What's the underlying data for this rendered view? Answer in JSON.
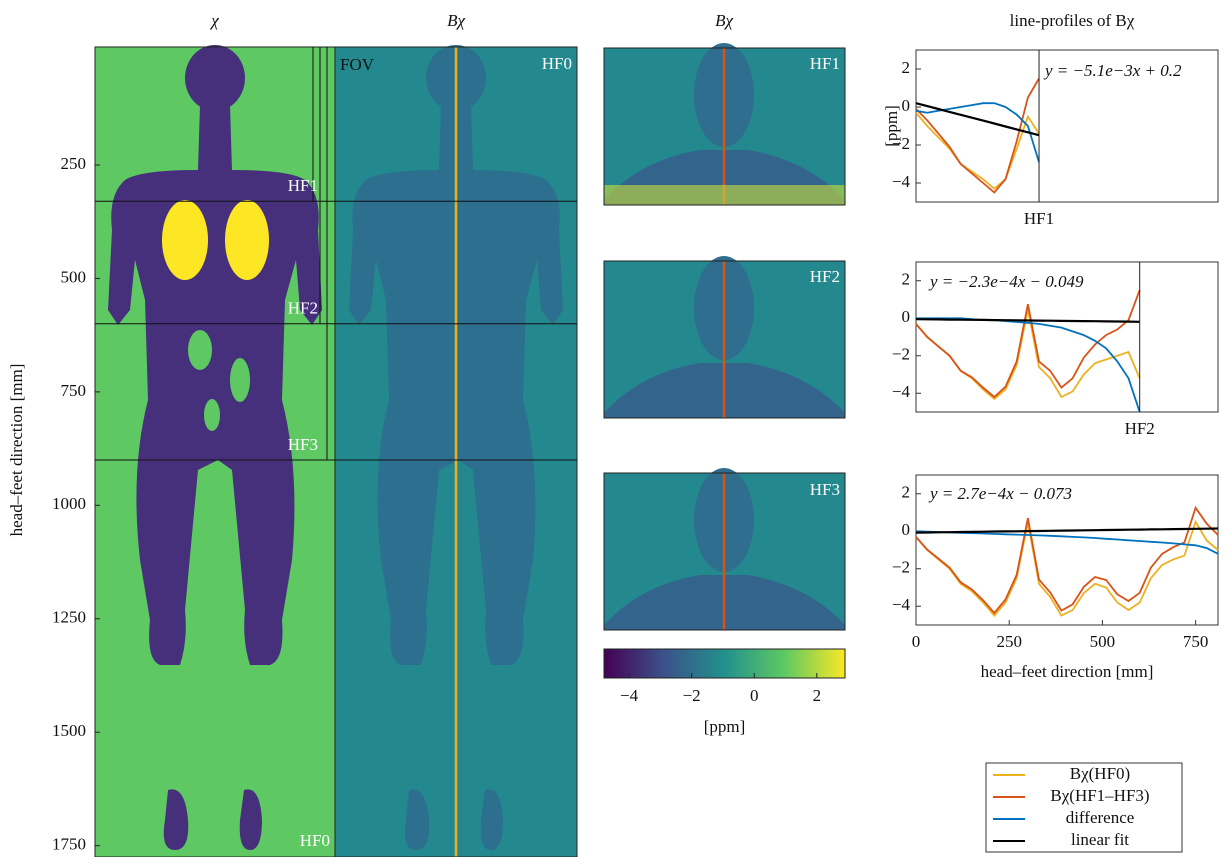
{
  "chart_data": [
    {
      "type": "image",
      "title": "χ",
      "ylabel": "head–feet direction [mm]",
      "ylim": [
        -10,
        1775
      ],
      "yticks": [
        250,
        500,
        750,
        1000,
        1250,
        1500,
        1750
      ],
      "hf_lines": [
        330,
        600,
        900
      ],
      "hf_labels": [
        "HF1",
        "HF2",
        "HF3"
      ],
      "label": "HF0",
      "fov_label": "FOV"
    },
    {
      "type": "image",
      "title": "Bχ",
      "label": "HF0"
    },
    {
      "type": "image",
      "title": "Bχ",
      "panel_labels": [
        "HF1",
        "HF2",
        "HF3"
      ]
    },
    {
      "type": "colorbar",
      "xlim": [
        -4.8,
        2.9
      ],
      "xticks": [
        {
          "value": -4,
          "label": "−4"
        },
        {
          "value": -2,
          "label": "−2"
        },
        0,
        2
      ],
      "xlabel": "[ppm]"
    },
    {
      "type": "line",
      "title": "line-profiles of Bχ",
      "ylabel": "[ppm]",
      "annotation": "y = −5.1e−3x + 0.2",
      "xlim": [
        0,
        810
      ],
      "ylim": [
        -5,
        3
      ],
      "yticks": [
        2,
        0,
        {
          "value": -2,
          "label": "−2"
        },
        {
          "value": -4,
          "label": "−4"
        }
      ],
      "vline": 330,
      "vline_label": "HF1",
      "x": [
        0,
        30,
        60,
        90,
        120,
        150,
        180,
        210,
        240,
        270,
        300,
        330,
        360,
        390,
        420,
        450,
        480,
        510,
        540,
        570,
        600,
        630,
        660,
        690,
        720,
        750,
        780,
        810
      ],
      "series": [
        {
          "color": "#edb120",
          "values": [
            -0.3,
            -1.0,
            -1.6,
            -2.2,
            -3.0,
            -3.4,
            -3.8,
            -4.3,
            -3.8,
            -2.2,
            -0.5,
            -1.4,
            null,
            null,
            null,
            null,
            null,
            null,
            null,
            null,
            null,
            null,
            null,
            null,
            null,
            null,
            null,
            null
          ]
        },
        {
          "color": "#d95319",
          "values": [
            -0.1,
            -0.7,
            -1.4,
            -2.1,
            -3.0,
            -3.5,
            -4.0,
            -4.5,
            -3.8,
            -1.8,
            0.5,
            1.5,
            null,
            null,
            null,
            null,
            null,
            null,
            null,
            null,
            null,
            null,
            null,
            null,
            null,
            null,
            null,
            null
          ]
        },
        {
          "color": "#0072bd",
          "values": [
            -0.2,
            -0.3,
            -0.2,
            -0.1,
            0.0,
            0.1,
            0.2,
            0.2,
            0.0,
            -0.4,
            -1.0,
            -2.9,
            null,
            null,
            null,
            null,
            null,
            null,
            null,
            null,
            null,
            null,
            null,
            null,
            null,
            null,
            null,
            null
          ]
        },
        {
          "color": "#000000",
          "values": [
            0.2,
            0.047,
            -0.106,
            -0.259,
            -0.412,
            -0.565,
            -0.718,
            -0.871,
            -1.024,
            -1.177,
            -1.33,
            -1.483,
            null,
            null,
            null,
            null,
            null,
            null,
            null,
            null,
            null,
            null,
            null,
            null,
            null,
            null,
            null,
            null
          ]
        }
      ]
    },
    {
      "type": "line",
      "annotation": "y = −2.3e−4x − 0.049",
      "xlim": [
        0,
        810
      ],
      "ylim": [
        -5,
        3
      ],
      "yticks": [
        2,
        0,
        {
          "value": -2,
          "label": "−2"
        },
        {
          "value": -4,
          "label": "−4"
        }
      ],
      "vline": 600,
      "vline_label": "HF2",
      "x": [
        0,
        30,
        60,
        90,
        120,
        150,
        180,
        210,
        240,
        270,
        300,
        330,
        360,
        390,
        420,
        450,
        480,
        510,
        540,
        570,
        600,
        630,
        660,
        690,
        720,
        750,
        780,
        810
      ],
      "series": [
        {
          "color": "#edb120",
          "values": [
            -0.3,
            -1.0,
            -1.5,
            -2.0,
            -2.8,
            -3.2,
            -3.8,
            -4.3,
            -3.8,
            -2.5,
            0.5,
            -2.6,
            -3.2,
            -4.2,
            -3.9,
            -3.0,
            -2.4,
            -2.2,
            -2.0,
            -1.8,
            -3.2,
            null,
            null,
            null,
            null,
            null,
            null,
            null
          ]
        },
        {
          "color": "#d95319",
          "values": [
            -0.3,
            -1.0,
            -1.5,
            -2.0,
            -2.8,
            -3.15,
            -3.7,
            -4.2,
            -3.65,
            -2.3,
            0.75,
            -2.3,
            -2.8,
            -3.7,
            -3.2,
            -2.1,
            -1.4,
            -0.9,
            -0.6,
            -0.1,
            1.5,
            null,
            null,
            null,
            null,
            null,
            null,
            null
          ]
        },
        {
          "color": "#0072bd",
          "values": [
            0,
            0,
            0,
            0,
            0,
            -0.05,
            -0.1,
            -0.1,
            -0.15,
            -0.2,
            -0.25,
            -0.3,
            -0.4,
            -0.5,
            -0.7,
            -0.9,
            -1.2,
            -1.6,
            -2.3,
            -3.2,
            -5.0,
            null,
            null,
            null,
            null,
            null,
            null,
            null
          ]
        },
        {
          "color": "#000000",
          "values": [
            -0.049,
            -0.056,
            -0.063,
            -0.07,
            -0.077,
            -0.084,
            -0.09,
            -0.097,
            -0.104,
            -0.111,
            -0.118,
            -0.125,
            -0.132,
            -0.139,
            -0.146,
            -0.153,
            -0.159,
            -0.166,
            -0.173,
            -0.18,
            -0.187,
            null,
            null,
            null,
            null,
            null,
            null,
            null
          ]
        }
      ]
    },
    {
      "type": "line",
      "annotation": "y = 2.7e−4x − 0.073",
      "xlabel": "head–feet direction [mm]",
      "xlim": [
        0,
        810
      ],
      "ylim": [
        -5,
        3
      ],
      "yticks": [
        2,
        0,
        {
          "value": -2,
          "label": "−2"
        },
        {
          "value": -4,
          "label": "−4"
        }
      ],
      "xticks": [
        0,
        250,
        500,
        750
      ],
      "x": [
        0,
        30,
        60,
        90,
        120,
        150,
        180,
        210,
        240,
        270,
        300,
        330,
        360,
        390,
        420,
        450,
        480,
        510,
        540,
        570,
        600,
        630,
        660,
        690,
        720,
        750,
        780,
        810
      ],
      "series": [
        {
          "name": "Bχ(HF0)",
          "color": "#edb120",
          "values": [
            -0.3,
            -1.0,
            -1.5,
            -2.0,
            -2.8,
            -3.2,
            -3.8,
            -4.5,
            -3.8,
            -2.5,
            0.5,
            -2.8,
            -3.5,
            -4.5,
            -4.2,
            -3.3,
            -2.8,
            -3.0,
            -3.8,
            -4.2,
            -3.8,
            -2.5,
            -1.8,
            -1.5,
            -1.3,
            0.5,
            -0.5,
            -1.0
          ]
        },
        {
          "name": "Bχ(HF1–HF3)",
          "color": "#d95319",
          "values": [
            -0.3,
            -0.98,
            -1.46,
            -1.94,
            -2.72,
            -3.1,
            -3.68,
            -4.36,
            -3.64,
            -2.32,
            0.7,
            -2.58,
            -3.26,
            -4.23,
            -3.9,
            -2.97,
            -2.44,
            -2.6,
            -3.36,
            -3.72,
            -3.28,
            -1.94,
            -1.2,
            -0.85,
            -0.6,
            1.25,
            0.4,
            -0.2
          ]
        },
        {
          "name": "difference",
          "color": "#0072bd",
          "values": [
            0,
            -0.02,
            -0.04,
            -0.06,
            -0.08,
            -0.1,
            -0.12,
            -0.14,
            -0.16,
            -0.18,
            -0.2,
            -0.22,
            -0.24,
            -0.27,
            -0.3,
            -0.33,
            -0.36,
            -0.4,
            -0.44,
            -0.48,
            -0.52,
            -0.56,
            -0.6,
            -0.65,
            -0.7,
            -0.75,
            -0.9,
            -1.2
          ]
        },
        {
          "name": "linear fit",
          "color": "#000000",
          "values": [
            -0.073,
            -0.065,
            -0.057,
            -0.049,
            -0.041,
            -0.033,
            -0.024,
            -0.016,
            -0.008,
            0.0,
            0.008,
            0.016,
            0.024,
            0.032,
            0.04,
            0.049,
            0.057,
            0.065,
            0.073,
            0.081,
            0.089,
            0.097,
            0.105,
            0.113,
            0.121,
            0.13,
            0.138,
            0.146
          ]
        }
      ]
    }
  ]
}
